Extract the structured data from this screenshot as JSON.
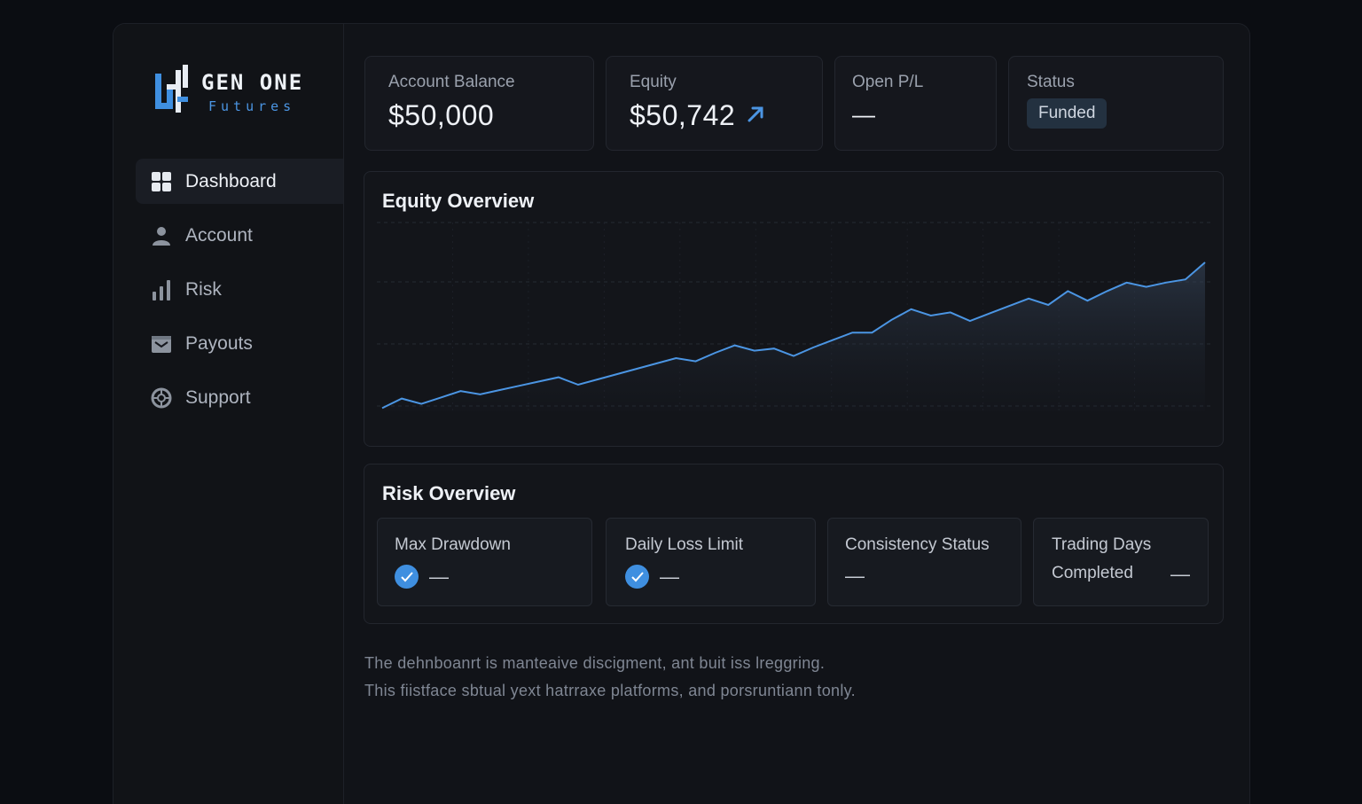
{
  "brand": {
    "title": "GEN ONE",
    "subtitle": "Futures",
    "colors": {
      "accent": "#4b95e3",
      "background": "#0b0d12",
      "panel": "#15171d"
    }
  },
  "sidebar": {
    "items": [
      {
        "label": "Dashboard",
        "icon": "grid-icon",
        "active": true
      },
      {
        "label": "Account",
        "icon": "user-icon",
        "active": false
      },
      {
        "label": "Risk",
        "icon": "bar-chart-icon",
        "active": false
      },
      {
        "label": "Payouts",
        "icon": "wallet-icon",
        "active": false
      },
      {
        "label": "Support",
        "icon": "lifebuoy-icon",
        "active": false
      }
    ]
  },
  "stats": {
    "balance": {
      "label": "Account Balance",
      "value": "$50,000"
    },
    "equity": {
      "label": "Equity",
      "value": "$50,742",
      "trend_icon": "arrow-up-right-icon"
    },
    "open_pl": {
      "label": "Open P/L",
      "value": "—"
    },
    "status": {
      "label": "Status",
      "value": "Funded"
    }
  },
  "equity_panel": {
    "title": "Equity Overview"
  },
  "chart_data": {
    "type": "area",
    "title": "Equity Overview",
    "xlabel": "",
    "ylabel": "",
    "grid": true,
    "legend": "none",
    "line_color": "#4b95e3",
    "x": [
      0,
      1,
      2,
      3,
      4,
      5,
      6,
      7,
      8,
      9,
      10,
      11,
      12,
      13,
      14,
      15,
      16,
      17,
      18,
      19,
      20,
      21,
      22,
      23,
      24,
      25,
      26,
      27,
      28,
      29,
      30,
      31,
      32,
      33,
      34,
      35,
      36,
      37,
      38,
      39,
      40,
      41,
      42
    ],
    "values": [
      3,
      12,
      7,
      13,
      19,
      16,
      20,
      24,
      28,
      32,
      25,
      30,
      35,
      40,
      45,
      50,
      47,
      55,
      62,
      57,
      59,
      52,
      60,
      67,
      74,
      74,
      86,
      96,
      90,
      93,
      85,
      92,
      99,
      106,
      100,
      113,
      104,
      113,
      121,
      117,
      121,
      124,
      140
    ],
    "ylim": [
      0,
      175
    ]
  },
  "risk": {
    "title": "Risk Overview",
    "items": [
      {
        "label": "Max Drawdown",
        "value": "—",
        "checked": true
      },
      {
        "label": "Daily Loss Limit",
        "value": "—",
        "checked": true
      },
      {
        "label": "Consistency Status",
        "value": "—",
        "checked": false
      },
      {
        "label_line1": "Trading Days",
        "label_line2": "Completed",
        "value": "—",
        "checked": false
      }
    ]
  },
  "footer": {
    "line1": "The dehnboanrt is manteaive discigment, ant buit iss lreggring.",
    "line2": "This fiistface sbtual yext hatrraxe platforms, and porsruntiann tonly."
  }
}
